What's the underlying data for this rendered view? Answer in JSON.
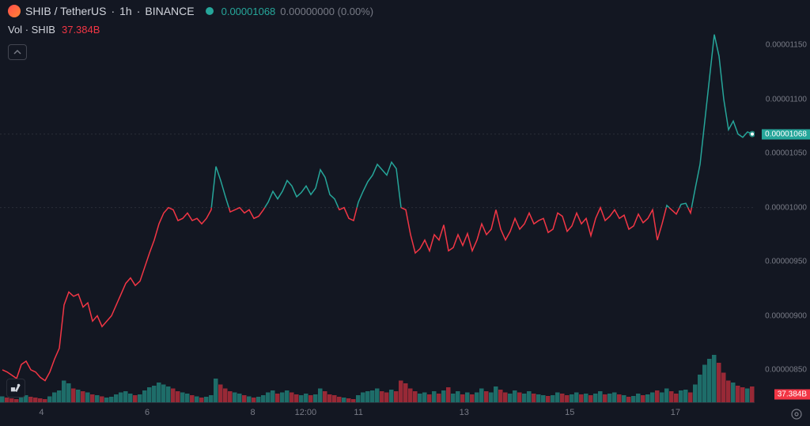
{
  "header": {
    "symbol": "SHIB / TetherUS",
    "interval": "1h",
    "exchange": "BINANCE",
    "price": "0.00001068",
    "change": "0.00000000",
    "change_pct": "(0.00%)"
  },
  "volume": {
    "label": "Vol",
    "symbol": "SHIB",
    "value": "37.384B"
  },
  "chart": {
    "type": "line",
    "background_color": "#131722",
    "grid_color": "#2a2e39",
    "up_color": "#26a69a",
    "down_color": "#f23645",
    "text_color": "#787b86",
    "y_axis": {
      "min": 8.2e-06,
      "max": 1.17e-05,
      "ticks": [
        {
          "value": 1.15e-05,
          "label": "0.00001150"
        },
        {
          "value": 1.1e-05,
          "label": "0.00001100"
        },
        {
          "value": 1.05e-05,
          "label": "0.00001050"
        },
        {
          "value": 1e-05,
          "label": "0.00001000"
        },
        {
          "value": 9.5e-06,
          "label": "0.00000950"
        },
        {
          "value": 9e-06,
          "label": "0.00000900"
        },
        {
          "value": 8.5e-06,
          "label": "0.00000850"
        }
      ],
      "current_price": 1.068e-05,
      "current_price_label": "0.00001068",
      "baseline": 1e-05
    },
    "x_axis": {
      "ticks": [
        {
          "pos": 0.055,
          "label": "4"
        },
        {
          "pos": 0.195,
          "label": "6"
        },
        {
          "pos": 0.335,
          "label": "8"
        },
        {
          "pos": 0.405,
          "label": "12:00"
        },
        {
          "pos": 0.475,
          "label": "11"
        },
        {
          "pos": 0.615,
          "label": "13"
        },
        {
          "pos": 0.755,
          "label": "15"
        },
        {
          "pos": 0.895,
          "label": "17"
        }
      ]
    },
    "volume_badge": "37.384B",
    "price_series": [
      850,
      848,
      845,
      842,
      855,
      858,
      850,
      848,
      843,
      840,
      848,
      860,
      870,
      910,
      922,
      918,
      920,
      908,
      912,
      895,
      900,
      890,
      895,
      900,
      910,
      920,
      930,
      935,
      928,
      932,
      945,
      958,
      970,
      985,
      995,
      1000,
      998,
      988,
      990,
      995,
      988,
      990,
      985,
      990,
      998,
      1038,
      1025,
      1010,
      996,
      998,
      1000,
      995,
      998,
      990,
      992,
      998,
      1005,
      1015,
      1008,
      1015,
      1025,
      1020,
      1010,
      1014,
      1020,
      1012,
      1018,
      1035,
      1028,
      1012,
      1008,
      998,
      1000,
      990,
      988,
      1005,
      1015,
      1024,
      1030,
      1040,
      1035,
      1030,
      1042,
      1036,
      1000,
      998,
      975,
      958,
      962,
      970,
      960,
      975,
      970,
      984,
      960,
      963,
      975,
      965,
      976,
      960,
      970,
      985,
      975,
      980,
      998,
      980,
      970,
      978,
      990,
      980,
      985,
      995,
      985,
      988,
      990,
      977,
      980,
      995,
      992,
      978,
      983,
      995,
      985,
      990,
      974,
      990,
      1000,
      988,
      992,
      998,
      990,
      993,
      980,
      983,
      994,
      986,
      990,
      998,
      970,
      985,
      1002,
      998,
      994,
      1003,
      1004,
      995,
      1018,
      1040,
      1080,
      1120,
      1160,
      1140,
      1100,
      1072,
      1080,
      1068,
      1065,
      1070,
      1068
    ],
    "volume_series": [
      15,
      12,
      10,
      8,
      20,
      18,
      14,
      12,
      10,
      8,
      15,
      25,
      30,
      55,
      48,
      35,
      32,
      28,
      25,
      20,
      18,
      15,
      12,
      14,
      20,
      25,
      28,
      22,
      18,
      20,
      30,
      38,
      42,
      50,
      45,
      40,
      35,
      28,
      25,
      22,
      18,
      15,
      12,
      14,
      18,
      60,
      45,
      35,
      28,
      25,
      22,
      18,
      15,
      12,
      14,
      18,
      25,
      30,
      22,
      25,
      30,
      25,
      20,
      18,
      22,
      18,
      20,
      35,
      28,
      20,
      18,
      14,
      12,
      10,
      8,
      18,
      25,
      28,
      30,
      35,
      28,
      25,
      32,
      28,
      55,
      48,
      35,
      28,
      22,
      25,
      20,
      28,
      22,
      30,
      38,
      22,
      28,
      20,
      25,
      20,
      25,
      35,
      28,
      25,
      40,
      32,
      25,
      22,
      30,
      25,
      22,
      28,
      22,
      20,
      18,
      16,
      18,
      25,
      22,
      18,
      20,
      25,
      20,
      22,
      18,
      22,
      28,
      20,
      22,
      25,
      20,
      18,
      14,
      16,
      22,
      18,
      20,
      25,
      30,
      25,
      35,
      28,
      22,
      30,
      32,
      25,
      45,
      70,
      95,
      110,
      120,
      100,
      75,
      55,
      50,
      42,
      38,
      35,
      40
    ]
  }
}
